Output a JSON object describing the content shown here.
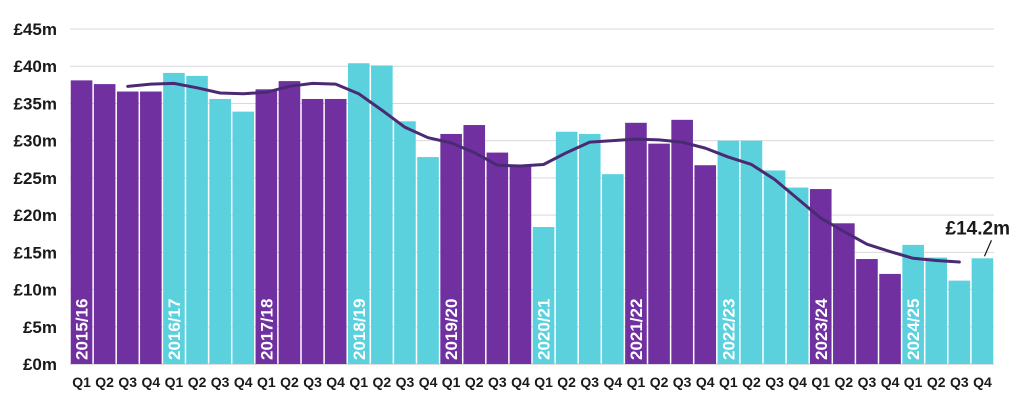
{
  "chart_data": {
    "type": "bar",
    "yunit_prefix": "£",
    "yunit_suffix": "m",
    "ylim": [
      0,
      45
    ],
    "yticks": [
      0,
      5,
      10,
      15,
      20,
      25,
      30,
      35,
      40,
      45
    ],
    "grid": true,
    "colors": {
      "odd_year": "#7030a0",
      "even_year": "#5bd1de",
      "line": "#4b2a74",
      "grid": "#d9d9d9"
    },
    "groups": [
      {
        "year": "2015/16",
        "quarters": [
          "Q1",
          "Q2",
          "Q3",
          "Q4"
        ],
        "values": [
          38.1,
          37.6,
          36.6,
          36.6
        ]
      },
      {
        "year": "2016/17",
        "quarters": [
          "Q1",
          "Q2",
          "Q3",
          "Q4"
        ],
        "values": [
          39.1,
          38.7,
          35.6,
          33.9
        ]
      },
      {
        "year": "2017/18",
        "quarters": [
          "Q1",
          "Q2",
          "Q3",
          "Q4"
        ],
        "values": [
          36.9,
          38.0,
          35.6,
          35.6
        ]
      },
      {
        "year": "2018/19",
        "quarters": [
          "Q1",
          "Q2",
          "Q3",
          "Q4"
        ],
        "values": [
          40.4,
          40.1,
          32.6,
          27.8
        ]
      },
      {
        "year": "2019/20",
        "quarters": [
          "Q1",
          "Q2",
          "Q3",
          "Q4"
        ],
        "values": [
          30.9,
          32.1,
          28.4,
          26.7
        ]
      },
      {
        "year": "2020/21",
        "quarters": [
          "Q1",
          "Q2",
          "Q3",
          "Q4"
        ],
        "values": [
          18.4,
          31.2,
          30.9,
          25.5
        ]
      },
      {
        "year": "2021/22",
        "quarters": [
          "Q1",
          "Q2",
          "Q3",
          "Q4"
        ],
        "values": [
          32.4,
          29.6,
          32.8,
          26.7
        ]
      },
      {
        "year": "2022/23",
        "quarters": [
          "Q1",
          "Q2",
          "Q3",
          "Q4"
        ],
        "values": [
          30.0,
          30.0,
          26.0,
          23.7
        ]
      },
      {
        "year": "2023/24",
        "quarters": [
          "Q1",
          "Q2",
          "Q3",
          "Q4"
        ],
        "values": [
          23.5,
          18.9,
          14.1,
          12.1
        ]
      },
      {
        "year": "2024/25",
        "quarters": [
          "Q1",
          "Q2",
          "Q3",
          "Q4"
        ],
        "values": [
          16.0,
          14.3,
          11.2,
          14.2
        ]
      }
    ],
    "rolling_average": {
      "start_index": 2,
      "values": [
        37.3,
        37.6,
        37.7,
        37.1,
        36.4,
        36.3,
        36.5,
        37.3,
        37.7,
        37.6,
        36.3,
        34.1,
        31.8,
        30.4,
        29.7,
        28.4,
        26.7,
        26.6,
        26.8,
        28.4,
        29.8,
        30.0,
        30.2,
        30.1,
        29.8,
        29.0,
        27.8,
        26.8,
        24.8,
        22.2,
        19.6,
        17.8,
        16.1,
        15.1,
        14.2,
        13.9,
        13.7
      ]
    },
    "annotation": {
      "text": "£14.2m",
      "target_index": 39
    }
  }
}
